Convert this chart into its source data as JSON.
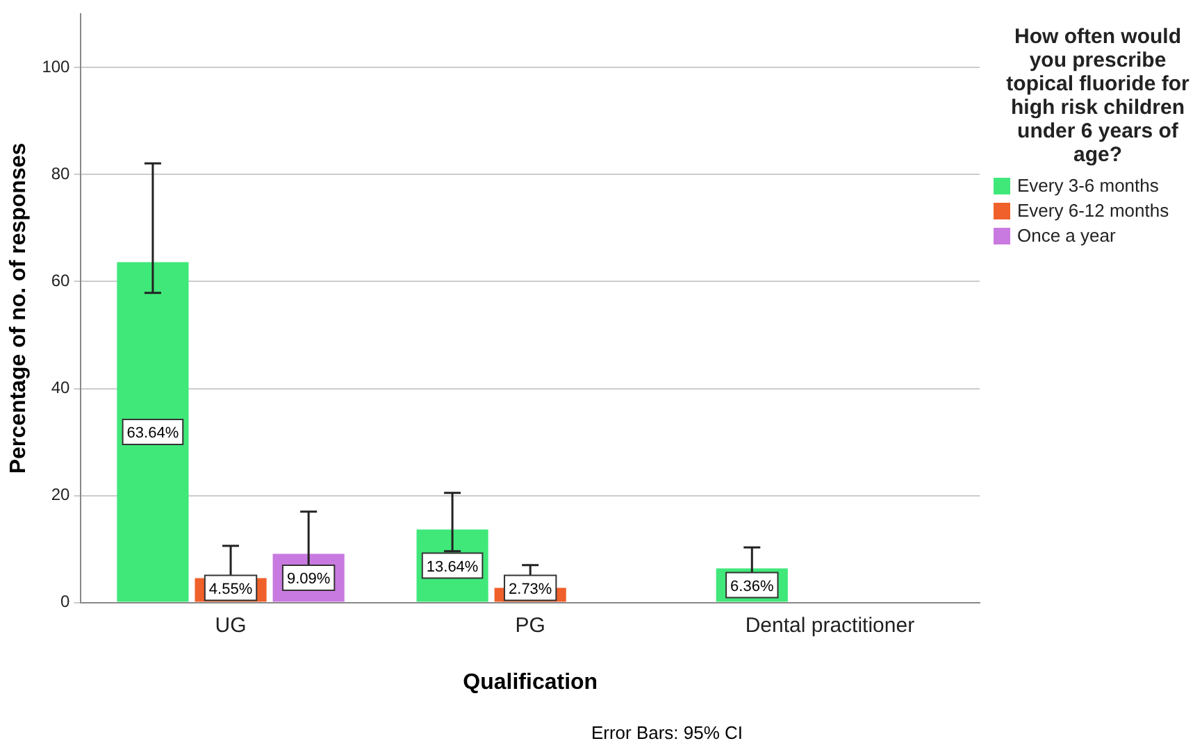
{
  "chart_data": {
    "type": "bar",
    "xlabel": "Qualification",
    "ylabel": "Percentage of no. of responses",
    "legend_title": "How often would you prescribe topical fluoride for high risk children under 6 years of age?",
    "categories": [
      "UG",
      "PG",
      "Dental practitioner"
    ],
    "series": [
      {
        "name": "Every 3-6 months",
        "color": "#40e87a",
        "values": [
          63.64,
          13.64,
          6.36
        ],
        "errors": [
          [
            57.9,
            82.1
          ],
          [
            9.6,
            20.5
          ],
          [
            4.1,
            10.3
          ]
        ],
        "value_labels": [
          "63.64%",
          "13.64%",
          "6.36%"
        ]
      },
      {
        "name": "Every 6-12 months",
        "color": "#f0602a",
        "values": [
          4.55,
          2.73,
          null
        ],
        "errors": [
          [
            2,
            10.6
          ],
          [
            0.9,
            7
          ],
          null
        ],
        "value_labels": [
          "4.55%",
          "2.73%",
          null
        ]
      },
      {
        "name": "Once a year",
        "color": "#c97ae0",
        "values": [
          9.09,
          null,
          null
        ],
        "errors": [
          [
            5.4,
            17
          ],
          null,
          null
        ],
        "value_labels": [
          "9.09%",
          null,
          null
        ]
      }
    ],
    "ylim": [
      0,
      110
    ],
    "yticks": [
      0,
      20,
      40,
      60,
      80,
      100
    ],
    "grid": "y",
    "legend": "top right",
    "annotations": [
      "Error Bars: 95% CI"
    ]
  }
}
